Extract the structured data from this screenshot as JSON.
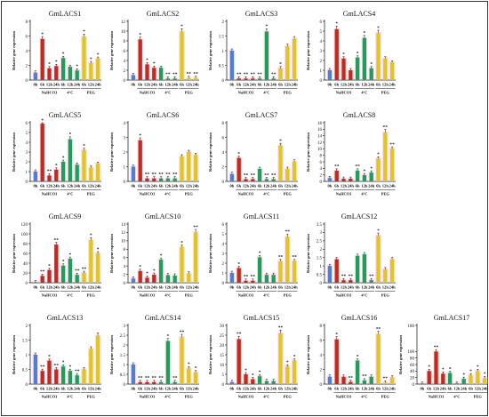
{
  "chart_data": [
    {
      "type": "bar",
      "title": "GmLACS1",
      "ylabel": "Relative gene expression",
      "ylim": [
        0,
        8
      ],
      "yticks": [
        0,
        2,
        4,
        6,
        8
      ],
      "categories": [
        "0h",
        "6h",
        "12h",
        "24h",
        "6h",
        "12h",
        "24h",
        "6h",
        "12h",
        "24h"
      ],
      "values": [
        1.0,
        5.6,
        1.6,
        1.9,
        3.0,
        1.8,
        1.3,
        5.9,
        2.3,
        2.9
      ],
      "sig": [
        "",
        "*",
        "*",
        "*",
        "*",
        "",
        "*",
        "*",
        "*",
        "*"
      ],
      "groups": [
        "NaHCO3",
        "4°C",
        "PEG"
      ]
    },
    {
      "type": "bar",
      "title": "GmLACS2",
      "ylabel": "Relative gene expression",
      "ylim": [
        0,
        12
      ],
      "yticks": [
        0,
        2,
        4,
        6,
        8,
        10,
        12
      ],
      "categories": [
        "0h",
        "6h",
        "12h",
        "24h",
        "6h",
        "12h",
        "24h",
        "6h",
        "12h",
        "24h"
      ],
      "values": [
        1.0,
        8.3,
        3.2,
        2.5,
        2.5,
        0.3,
        0.3,
        9.9,
        0.4,
        0.4
      ],
      "sig": [
        "",
        "*",
        "*",
        "*",
        "",
        "**",
        "**",
        "*",
        "**",
        "**"
      ],
      "groups": [
        "NaHCO3",
        "4°C",
        "PEG"
      ]
    },
    {
      "type": "bar",
      "title": "GmLACS3",
      "ylabel": "Relative gene expression",
      "ylim": [
        0,
        2
      ],
      "yticks": [
        0,
        0.5,
        1.0,
        1.5,
        2.0
      ],
      "categories": [
        "0h",
        "6h",
        "12h",
        "24h",
        "6h",
        "12h",
        "24h",
        "6h",
        "12h",
        "24h"
      ],
      "values": [
        1.0,
        0.05,
        0.05,
        0.05,
        0.05,
        1.65,
        0.05,
        0.4,
        1.15,
        1.4
      ],
      "sig": [
        "",
        "**",
        "**",
        "**",
        "**",
        "*",
        "**",
        "*",
        "",
        ""
      ],
      "groups": [
        "NaHCO3",
        "4°C",
        "PEG"
      ]
    },
    {
      "type": "bar",
      "title": "GmLACS4",
      "ylabel": "Relative gene expression",
      "ylim": [
        0,
        6
      ],
      "yticks": [
        0,
        1,
        2,
        3,
        4,
        5,
        6
      ],
      "categories": [
        "0h",
        "6h",
        "12h",
        "24h",
        "6h",
        "12h",
        "24h",
        "6h",
        "12h",
        "24h"
      ],
      "values": [
        1.0,
        5.2,
        2.2,
        1.0,
        2.3,
        4.3,
        1.2,
        4.8,
        2.2,
        1.8
      ],
      "sig": [
        "",
        "*",
        "*",
        "",
        "*",
        "*",
        "*",
        "*",
        "",
        ""
      ],
      "groups": [
        "NaHCO3",
        "4°C",
        "PEG"
      ]
    },
    {
      "type": "bar",
      "title": "GmLACS5",
      "ylabel": "Relative gene expression",
      "ylim": [
        0,
        6
      ],
      "yticks": [
        0,
        1,
        2,
        3,
        4,
        5,
        6
      ],
      "categories": [
        "0h",
        "6h",
        "12h",
        "24h",
        "6h",
        "12h",
        "24h",
        "6h",
        "12h",
        "24h"
      ],
      "values": [
        1.0,
        5.9,
        0.6,
        1.2,
        2.0,
        4.3,
        1.7,
        3.2,
        1.4,
        1.8
      ],
      "sig": [
        "",
        "*",
        "**",
        "*",
        "*",
        "*",
        "",
        "*",
        "",
        ""
      ],
      "groups": [
        "NaHCO3",
        "4°C",
        "PEG"
      ]
    },
    {
      "type": "bar",
      "title": "GmLACS6",
      "ylabel": "Relative gene expression",
      "ylim": [
        0,
        4
      ],
      "yticks": [
        0,
        1,
        2,
        3,
        4
      ],
      "categories": [
        "0h",
        "6h",
        "12h",
        "24h",
        "6h",
        "12h",
        "24h",
        "6h",
        "12h",
        "24h"
      ],
      "values": [
        1.0,
        2.8,
        0.2,
        0.2,
        0.2,
        0.2,
        0.2,
        1.7,
        2.0,
        1.8
      ],
      "sig": [
        "",
        "*",
        "**",
        "**",
        "**",
        "**",
        "**",
        "",
        "",
        ""
      ],
      "groups": [
        "NaHCO3",
        "4°C",
        "PEG"
      ]
    },
    {
      "type": "bar",
      "title": "GmLACS7",
      "ylabel": "Relative gene expression",
      "ylim": [
        0,
        8
      ],
      "yticks": [
        0,
        2,
        4,
        6,
        8
      ],
      "categories": [
        "0h",
        "6h",
        "12h",
        "24h",
        "6h",
        "12h",
        "24h",
        "6h",
        "12h",
        "24h"
      ],
      "values": [
        1.0,
        3.2,
        0.3,
        0.3,
        1.7,
        0.3,
        0.3,
        4.9,
        1.7,
        2.7
      ],
      "sig": [
        "",
        "*",
        "**",
        "**",
        "",
        "**",
        "**",
        "*",
        "",
        ""
      ],
      "groups": [
        "NaHCO3",
        "4°C",
        "PEG"
      ]
    },
    {
      "type": "bar",
      "title": "GmLACS8",
      "ylabel": "Relative gene expression",
      "ylim": [
        0,
        18
      ],
      "yticks": [
        0,
        2,
        4,
        6,
        8,
        10,
        12,
        14,
        16,
        18
      ],
      "categories": [
        "0h",
        "6h",
        "12h",
        "24h",
        "6h",
        "12h",
        "24h",
        "6h",
        "12h",
        "24h"
      ],
      "values": [
        1.0,
        3.3,
        0.8,
        0.8,
        3.3,
        1.9,
        2.7,
        7.0,
        15.0,
        10.0
      ],
      "sig": [
        "",
        "**",
        "",
        "",
        "**",
        "*",
        "*",
        "*",
        "**",
        "**"
      ],
      "groups": [
        "NaHCO3",
        "4°C",
        "PEG"
      ]
    },
    {
      "type": "bar",
      "title": "GmLACS9",
      "ylabel": "Relative gene expression",
      "ylim": [
        0,
        120
      ],
      "yticks": [
        0,
        20,
        40,
        60,
        80,
        100,
        120
      ],
      "categories": [
        "0h",
        "6h",
        "12h",
        "24h",
        "6h",
        "12h",
        "24h",
        "6h",
        "12h",
        "24h"
      ],
      "values": [
        1.0,
        14.0,
        26.0,
        78.0,
        35.0,
        49.0,
        16.0,
        20.0,
        87.0,
        60.0
      ],
      "sig": [
        "",
        "**",
        "*",
        "**",
        "*",
        "*",
        "**",
        "**",
        "*",
        "*"
      ],
      "groups": [
        "NaHCO3",
        "4°C",
        "PEG"
      ]
    },
    {
      "type": "bar",
      "title": "GmLACS10",
      "ylabel": "Relative gene expression",
      "ylim": [
        0,
        14
      ],
      "yticks": [
        0,
        2,
        4,
        6,
        8,
        10,
        12,
        14
      ],
      "categories": [
        "0h",
        "6h",
        "12h",
        "24h",
        "6h",
        "12h",
        "24h",
        "6h",
        "12h",
        "24h"
      ],
      "values": [
        1.0,
        2.8,
        1.2,
        1.9,
        5.5,
        1.8,
        1.7,
        8.5,
        2.2,
        12.0
      ],
      "sig": [
        "",
        "*",
        "*",
        "*",
        "*",
        "",
        "",
        "*",
        "",
        "**"
      ],
      "groups": [
        "NaHCO3",
        "4°C",
        "PEG"
      ]
    },
    {
      "type": "bar",
      "title": "GmLACS11",
      "ylabel": "Relative gene expression",
      "ylim": [
        0,
        6
      ],
      "yticks": [
        0,
        1,
        2,
        3,
        4,
        5,
        6
      ],
      "categories": [
        "0h",
        "6h",
        "12h",
        "24h",
        "6h",
        "12h",
        "24h",
        "6h",
        "12h",
        "24h"
      ],
      "values": [
        1.0,
        1.5,
        0.2,
        0.2,
        2.6,
        0.8,
        0.8,
        2.2,
        4.7,
        2.2
      ],
      "sig": [
        "",
        "*",
        "**",
        "**",
        "*",
        "",
        "",
        "**",
        "**",
        "**"
      ],
      "groups": [
        "NaHCO3",
        "4°C",
        "PEG"
      ]
    },
    {
      "type": "bar",
      "title": "GmLACS12",
      "ylabel": "Relative gene expression",
      "ylim": [
        0,
        3.5
      ],
      "yticks": [
        0,
        0.5,
        1.0,
        1.5,
        2.0,
        2.5,
        3.0,
        3.5
      ],
      "categories": [
        "0h",
        "6h",
        "12h",
        "24h",
        "6h",
        "12h",
        "24h",
        "6h",
        "12h",
        "24h"
      ],
      "values": [
        1.0,
        1.4,
        0.15,
        0.15,
        1.6,
        1.7,
        0.15,
        2.8,
        0.8,
        1.4
      ],
      "sig": [
        "",
        "",
        "**",
        "**",
        "",
        "",
        "**",
        "*",
        "",
        ""
      ],
      "groups": [
        "NaHCO3",
        "4°C",
        "PEG"
      ]
    },
    {
      "type": "bar",
      "title": "GmLACS13",
      "ylabel": "Relative gene expression",
      "ylim": [
        0,
        2
      ],
      "yticks": [
        0,
        0.5,
        1.0,
        1.5,
        2.0
      ],
      "categories": [
        "0h",
        "6h",
        "12h",
        "24h",
        "6h",
        "12h",
        "24h",
        "6h",
        "12h",
        "24h"
      ],
      "values": [
        1.0,
        0.45,
        0.8,
        0.5,
        0.6,
        0.45,
        0.3,
        0.5,
        1.2,
        1.65
      ],
      "sig": [
        "",
        "**",
        "*",
        "**",
        "*",
        "*",
        "**",
        "",
        "",
        ""
      ],
      "groups": [
        "NaHCO3",
        "4°C",
        "PEG"
      ]
    },
    {
      "type": "bar",
      "title": "GmLACS14",
      "ylabel": "Relative gene expression",
      "ylim": [
        0,
        3
      ],
      "yticks": [
        0,
        0.5,
        1.0,
        1.5,
        2.0,
        2.5,
        3.0
      ],
      "categories": [
        "0h",
        "6h",
        "12h",
        "24h",
        "6h",
        "12h",
        "24h",
        "6h",
        "12h",
        "24h"
      ],
      "values": [
        1.0,
        0.1,
        0.1,
        0.1,
        0.1,
        2.2,
        0.1,
        2.4,
        0.8,
        0.6
      ],
      "sig": [
        "",
        "**",
        "**",
        "**",
        "**",
        "*",
        "**",
        "**",
        "*",
        "*"
      ],
      "groups": [
        "NaHCO3",
        "4°C",
        "PEG"
      ]
    },
    {
      "type": "bar",
      "title": "GmLACS15",
      "ylabel": "Relative gene expression",
      "ylim": [
        0,
        30
      ],
      "yticks": [
        0,
        5,
        10,
        15,
        20,
        25,
        30
      ],
      "categories": [
        "0h",
        "6h",
        "12h",
        "24h",
        "6h",
        "12h",
        "24h",
        "6h",
        "12h",
        "24h"
      ],
      "values": [
        1.0,
        23.0,
        5.0,
        2.5,
        4.0,
        1.5,
        1.5,
        26.0,
        9.0,
        12.0
      ],
      "sig": [
        "",
        "**",
        "*",
        "*",
        "*",
        "",
        "",
        "**",
        "*",
        "*"
      ],
      "groups": [
        "NaHCO3",
        "4°C",
        "PEG"
      ]
    },
    {
      "type": "bar",
      "title": "GmLACS16",
      "ylabel": "Relative gene expression",
      "ylim": [
        0,
        8
      ],
      "yticks": [
        0,
        2,
        4,
        6,
        8
      ],
      "categories": [
        "0h",
        "6h",
        "12h",
        "24h",
        "6h",
        "12h",
        "24h",
        "6h",
        "12h",
        "24h"
      ],
      "values": [
        1.0,
        6.1,
        1.0,
        0.3,
        3.2,
        0.5,
        1.0,
        6.8,
        0.2,
        0.9
      ],
      "sig": [
        "",
        "*",
        "",
        "**",
        "*",
        "**",
        "",
        "**",
        "**",
        ""
      ],
      "groups": [
        "NaHCO3",
        "4°C",
        "PEG"
      ]
    },
    {
      "type": "bar",
      "title": "GmLACS17",
      "ylabel": "Relative gene expression",
      "ylim": [
        0,
        180
      ],
      "yticks": [
        0,
        20,
        40,
        60,
        80,
        100,
        180
      ],
      "categories": [
        "0h",
        "6h",
        "12h",
        "24h",
        "6h",
        "12h",
        "24h",
        "6h",
        "12h",
        "24h"
      ],
      "values": [
        1.0,
        40.0,
        100.0,
        32.0,
        34.0,
        1.0,
        16.0,
        27.0,
        40.0,
        18.0
      ],
      "sig": [
        "",
        "*",
        "**",
        "*",
        "*",
        "",
        "*",
        "*",
        "*",
        "*"
      ],
      "groups": [
        "NaHCO3",
        "4°C",
        "PEG"
      ]
    }
  ],
  "colors": {
    "control": "#4d7fd6",
    "nahco3": "#c42a1c",
    "cold": "#1e9e5a",
    "peg": "#e2c522",
    "axis": "#111111",
    "frame": "#333333",
    "highlight": "#f7c6dc"
  }
}
